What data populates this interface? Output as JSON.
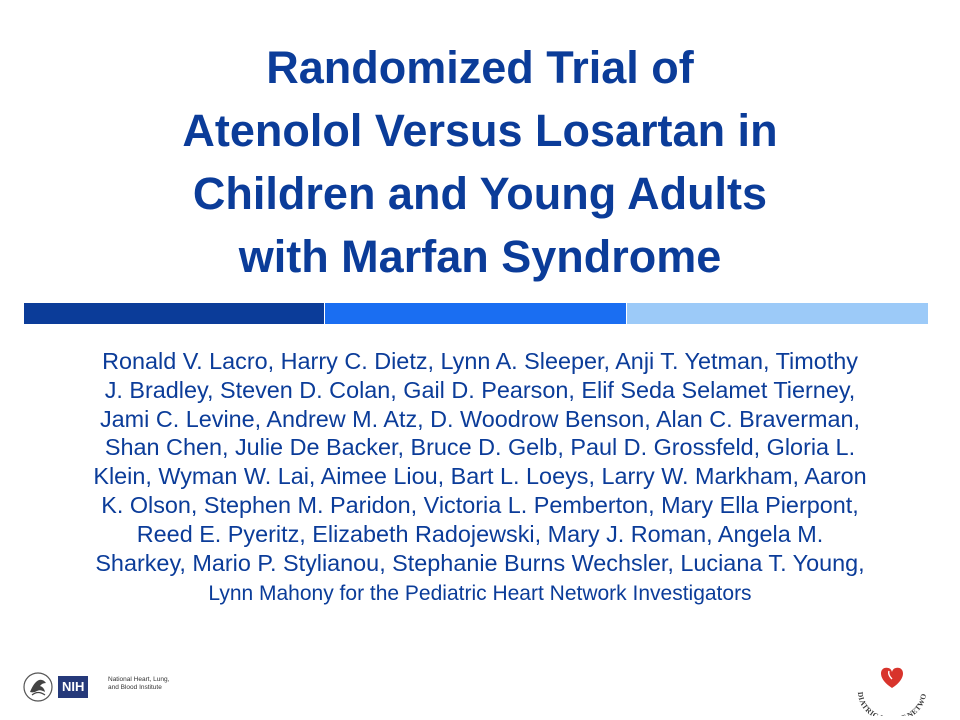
{
  "title": {
    "lines": [
      "Randomized Trial of",
      "Atenolol Versus Losartan in",
      "Children and Young Adults",
      "with Marfan Syndrome"
    ]
  },
  "colors": {
    "title": "#0b3c99",
    "bar_dark": "#0b3c99",
    "bar_mid": "#1a6ef2",
    "bar_light": "#9ccaf8"
  },
  "authors": {
    "lines": [
      "Ronald V. Lacro, Harry C. Dietz, Lynn A. Sleeper, Anji T. Yetman, Timothy",
      "J. Bradley, Steven D. Colan, Gail D. Pearson, Elif Seda Selamet Tierney,",
      "Jami C. Levine, Andrew M. Atz, D. Woodrow Benson, Alan C. Braverman,",
      "Shan Chen, Julie De Backer, Bruce D. Gelb, Paul D. Grossfeld, Gloria L.",
      "Klein, Wyman W. Lai, Aimee Liou, Bart L. Loeys, Larry W. Markham, Aaron",
      "K. Olson, Stephen M. Paridon, Victoria L. Pemberton, Mary Ella Pierpont,",
      "Reed E. Pyeritz, Elizabeth Radojewski, Mary J. Roman, Angela M.",
      "Sharkey, Mario P. Stylianou, Stephanie Burns Wechsler, Luciana T. Young,",
      "Lynn Mahony for the Pediatric Heart Network Investigators"
    ]
  },
  "logos": {
    "left": {
      "icon": "hhs-eagle-icon",
      "badge": "NIH",
      "text": [
        "National Heart, Lung,",
        "and Blood Institute"
      ]
    },
    "right": {
      "icon": "heart-icon",
      "text": "PEDIATRIC HEART NETWORK"
    }
  }
}
